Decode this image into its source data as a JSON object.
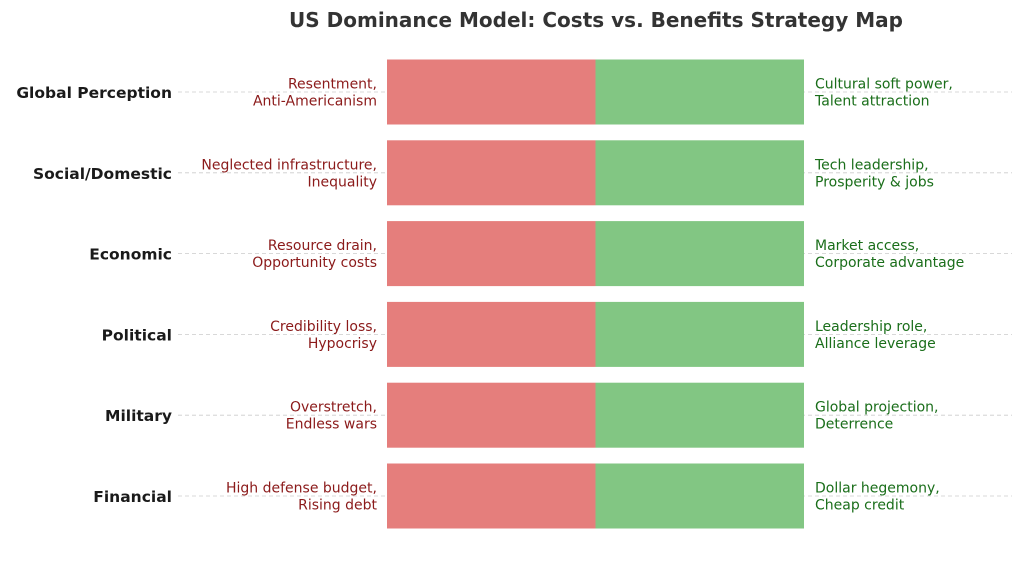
{
  "chart_data": {
    "type": "bar",
    "title": "US Dominance Model: Costs vs. Benefits Strategy Map",
    "xlabel": "",
    "ylabel": "",
    "grid": "horizontal dashed lines at each category",
    "legend": "none",
    "categories": [
      "Global Perception",
      "Social/Domestic",
      "Economic",
      "Political",
      "Military",
      "Financial"
    ],
    "series": [
      {
        "color": "#e57e7c",
        "text_color": "#8b1a1a",
        "values": [
          1,
          1,
          1,
          1,
          1,
          1
        ],
        "annotations": [
          [
            "Resentment,",
            "Anti-Americanism"
          ],
          [
            "Neglected infrastructure,",
            "Inequality"
          ],
          [
            "Resource drain,",
            "Opportunity costs"
          ],
          [
            "Credibility loss,",
            "Hypocrisy"
          ],
          [
            "Overstretch,",
            "Endless wars"
          ],
          [
            "High defense budget,",
            "Rising debt"
          ]
        ]
      },
      {
        "color": "#82c683",
        "text_color": "#1a6e1a",
        "values": [
          1,
          1,
          1,
          1,
          1,
          1
        ],
        "annotations": [
          [
            "Cultural soft power,",
            "Talent attraction"
          ],
          [
            "Tech leadership,",
            "Prosperity & jobs"
          ],
          [
            "Market access,",
            "Corporate advantage"
          ],
          [
            "Leadership role,",
            "Alliance leverage"
          ],
          [
            "Global projection,",
            "Deterrence"
          ],
          [
            "Dollar hegemony,",
            "Cheap credit"
          ]
        ]
      }
    ]
  },
  "colors": {
    "title": "#333333",
    "category_label": "#1a1a1a",
    "grid": "#cccccc"
  }
}
